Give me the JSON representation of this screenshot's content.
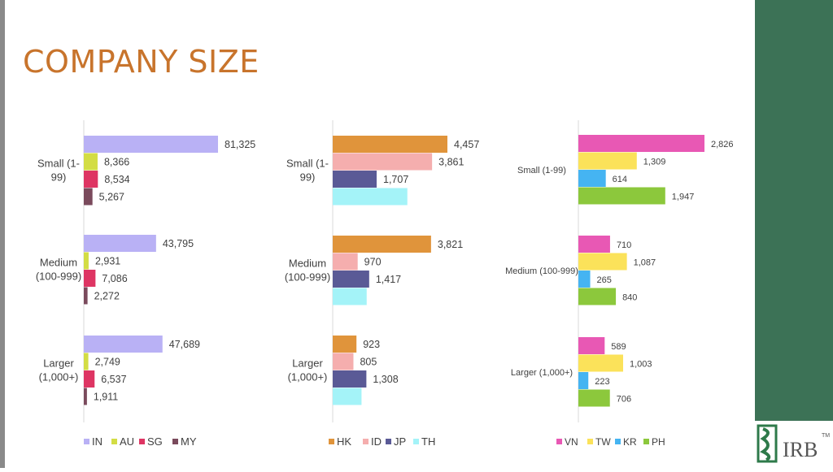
{
  "page": {
    "title": "COMPANY SIZE"
  },
  "logo": {
    "text": "IRB",
    "tm": "TM"
  },
  "chart_data": [
    {
      "type": "bar",
      "orientation": "horizontal",
      "categories": [
        "Small (1-99)",
        "Medium (100-999)",
        "Larger (1,000+)"
      ],
      "category_lines": [
        [
          "Small (1-",
          "99)"
        ],
        [
          "Medium",
          "(100-999)"
        ],
        [
          "Larger",
          "(1,000+)"
        ]
      ],
      "series": [
        {
          "name": "IN",
          "color": "#b9b1f5",
          "values": [
            81325,
            43795,
            47689
          ]
        },
        {
          "name": "AU",
          "color": "#d3dd44",
          "values": [
            8366,
            2931,
            2749
          ]
        },
        {
          "name": "SG",
          "color": "#de3563",
          "values": [
            8534,
            7086,
            6537
          ]
        },
        {
          "name": "MY",
          "color": "#7a4a5c",
          "values": [
            5267,
            2272,
            1911
          ]
        }
      ],
      "value_labels": [
        [
          "81,325",
          "8,366",
          "8,534",
          "5,267"
        ],
        [
          "43,795",
          "2,931",
          "7,086",
          "2,272"
        ],
        [
          "47,689",
          "2,749",
          "6,537",
          "1,911"
        ]
      ],
      "legend_position": "bottom",
      "grid": false
    },
    {
      "type": "bar",
      "orientation": "horizontal",
      "categories": [
        "Small (1-99)",
        "Medium (100-999)",
        "Larger (1,000+)"
      ],
      "category_lines": [
        [
          "Small (1-",
          "99)"
        ],
        [
          "Medium",
          "(100-999)"
        ],
        [
          "Larger",
          "(1,000+)"
        ]
      ],
      "series": [
        {
          "name": "HK",
          "color": "#e0943b",
          "values": [
            4457,
            3821,
            923
          ]
        },
        {
          "name": "ID",
          "color": "#f5aeae",
          "values": [
            3861,
            970,
            805
          ]
        },
        {
          "name": "JP",
          "color": "#5a5a96",
          "values": [
            1707,
            1417,
            1308
          ]
        },
        {
          "name": "TH",
          "color": "#a4f3f8",
          "values": [
            2900,
            1320,
            1120
          ]
        }
      ],
      "value_labels": [
        [
          "4,457",
          "3,861",
          "1,707",
          ""
        ],
        [
          "3,821",
          "970",
          "1,417",
          ""
        ],
        [
          "923",
          "805",
          "1,308",
          ""
        ]
      ],
      "legend_position": "bottom",
      "grid": false
    },
    {
      "type": "bar",
      "orientation": "horizontal",
      "categories": [
        "Small (1-99)",
        "Medium (100-999)",
        "Larger (1,000+)"
      ],
      "category_lines": [
        [
          "Small (1-99)"
        ],
        [
          "Medium (100-999)"
        ],
        [
          "Larger (1,000+)"
        ]
      ],
      "series": [
        {
          "name": "VN",
          "color": "#e858b4",
          "values": [
            2826,
            710,
            589
          ]
        },
        {
          "name": "TW",
          "color": "#fbe25a",
          "values": [
            1309,
            1087,
            1003
          ]
        },
        {
          "name": "KR",
          "color": "#45b4f2",
          "values": [
            614,
            265,
            223
          ]
        },
        {
          "name": "PH",
          "color": "#8cc83c",
          "values": [
            1947,
            840,
            706
          ]
        }
      ],
      "value_labels": [
        [
          "2,826",
          "1,309",
          "614",
          "1,947"
        ],
        [
          "710",
          "1,087",
          "265",
          "840"
        ],
        [
          "589",
          "1,003",
          "223",
          "706"
        ]
      ],
      "legend_position": "bottom",
      "grid": false
    }
  ]
}
